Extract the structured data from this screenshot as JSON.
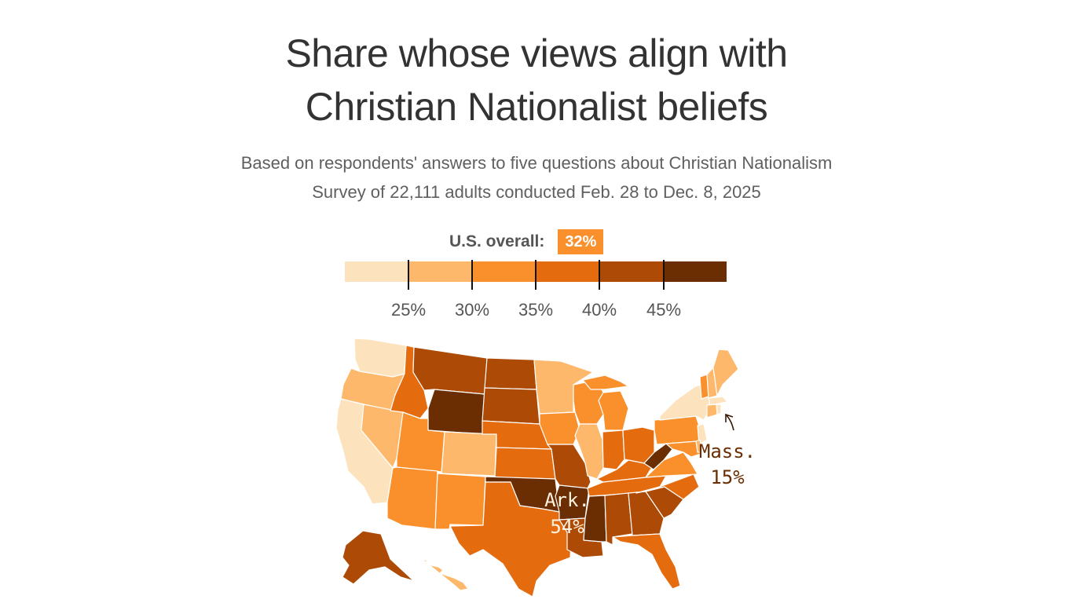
{
  "title_line1": "Share whose views align with",
  "title_line2": "Christian Nationalist beliefs",
  "subtitle_line1": "Based on respondents' answers to five questions about Christian Nationalism",
  "subtitle_line2": "Survey of 22,111 adults conducted Feb. 28 to Dec. 8, 2025",
  "overall": {
    "label": "U.S. overall:",
    "value": "32%"
  },
  "legend": {
    "colors": [
      "#fde3bd",
      "#fdb86c",
      "#f9902c",
      "#e56b0f",
      "#ad4a05",
      "#6b2d02"
    ],
    "ticks": [
      "25%",
      "30%",
      "35%",
      "40%",
      "45%"
    ]
  },
  "annotations": {
    "ark": {
      "name": "Ark.",
      "value": "54%"
    },
    "mass": {
      "name": "Mass.",
      "value": "15%"
    }
  },
  "map_data": {
    "type": "choropleth",
    "region": "United States",
    "bins": [
      "<25%",
      "25–30%",
      "30–35%",
      "35–40%",
      "40–45%",
      ">45%"
    ],
    "states": {
      "WA": 1,
      "OR": 2,
      "CA": 1,
      "NV": 2,
      "ID": 4,
      "MT": 5,
      "WY": 6,
      "UT": 3,
      "AZ": 3,
      "CO": 2,
      "NM": 3,
      "ND": 5,
      "SD": 5,
      "NE": 4,
      "KS": 4,
      "OK": 6,
      "TX": 4,
      "MN": 2,
      "IA": 3,
      "MO": 5,
      "AR": 6,
      "LA": 5,
      "WI": 3,
      "IL": 2,
      "MI": 3,
      "IN": 4,
      "OH": 4,
      "KY": 4,
      "TN": 4,
      "MS": 6,
      "AL": 5,
      "GA": 5,
      "FL": 4,
      "SC": 5,
      "NC": 4,
      "VA": 3,
      "WV": 6,
      "PA": 3,
      "NY": 1,
      "VT": 3,
      "NH": 2,
      "ME": 2,
      "MA": 1,
      "CT": 2,
      "RI": 1,
      "NJ": 1,
      "DE": 2,
      "MD": 3,
      "AK": 5,
      "HI": 2
    }
  }
}
